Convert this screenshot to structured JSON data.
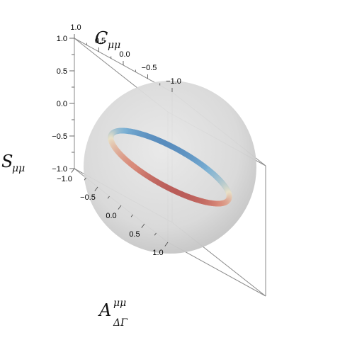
{
  "chart_data": {
    "type": "scatter",
    "dimension": "3d",
    "axes": {
      "x": {
        "title": "A",
        "title_superscript": "μμ",
        "title_subscript": "ΔΓ",
        "range": [
          -1.0,
          1.0
        ],
        "tick_labels": [
          "−1.0",
          "−0.5",
          "0.0",
          "0.5",
          "1.0"
        ]
      },
      "y": {
        "title": "C",
        "title_subscript": "μμ",
        "range": [
          -1.0,
          1.0
        ],
        "tick_labels": [
          "−1.0",
          "−0.5",
          "0.0",
          "0.5",
          "1.0"
        ]
      },
      "z": {
        "title": "S",
        "title_subscript": "μμ",
        "range": [
          -1.0,
          1.0
        ],
        "tick_labels": [
          "−1.0",
          "−0.5",
          "0.0",
          "0.5",
          "1.0"
        ]
      }
    },
    "sphere": {
      "radius": 1.0,
      "color": "#d4d4d4"
    },
    "curve": {
      "description_points": 260,
      "tilt_degrees": 40,
      "colormap": [
        "#2b5c9e",
        "#7ab0d4",
        "#e8e0c8",
        "#d98b7a",
        "#8e1b2b"
      ]
    },
    "colors": {
      "frame": "#8a8a8a",
      "sphere_center": "#e6e6e6",
      "sphere_edge": "#c8c8c8"
    }
  }
}
